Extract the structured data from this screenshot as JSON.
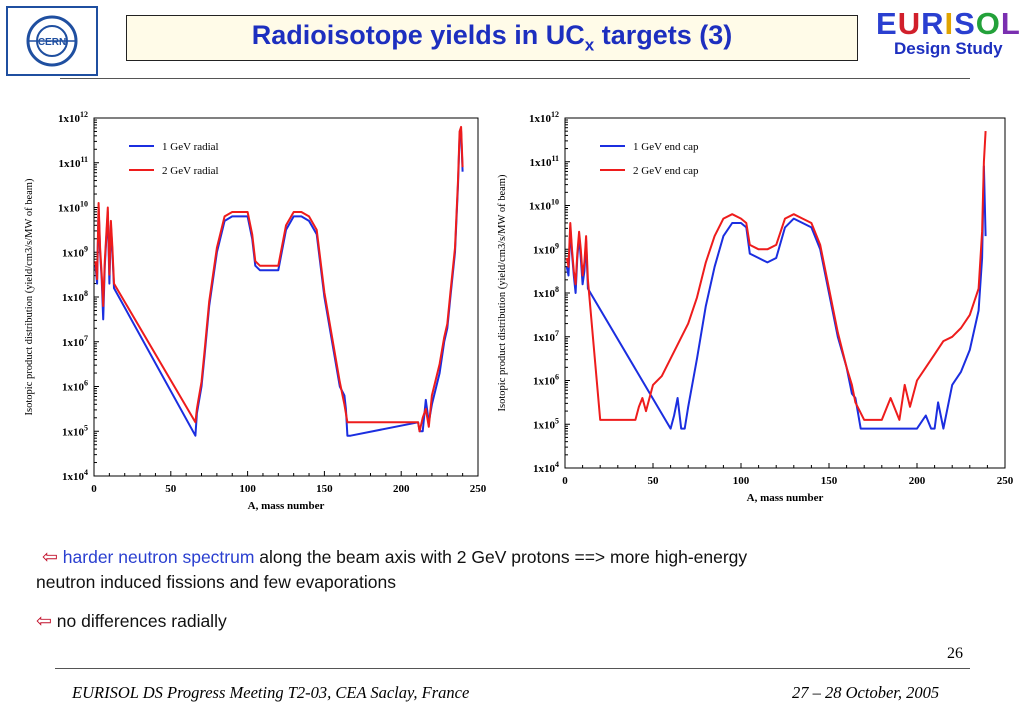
{
  "header": {
    "title_main": "Radioisotope yields in UC",
    "title_sub": "x",
    "title_tail": " targets (3)",
    "cern_logo_text": "CERN",
    "eurisol_letters": [
      {
        "ch": "E",
        "color": "#2a3fd0"
      },
      {
        "ch": "U",
        "color": "#d11f2b"
      },
      {
        "ch": "R",
        "color": "#2a3fd0"
      },
      {
        "ch": "I",
        "color": "#e0a400"
      },
      {
        "ch": "S",
        "color": "#2a3fd0"
      },
      {
        "ch": "O",
        "color": "#23a13a"
      },
      {
        "ch": "L",
        "color": "#7a2fb0"
      }
    ],
    "eurisol_subtitle": "Design Study"
  },
  "chart_data": [
    {
      "type": "line",
      "xlabel": "A, mass number",
      "ylabel": "Isotopic product distribution (yield/cm3/s/MW of beam)",
      "xlim": [
        0,
        250
      ],
      "ylim_log10": [
        4,
        12
      ],
      "x_ticks": [
        "0",
        "50",
        "100",
        "150",
        "200",
        "250"
      ],
      "y_ticks": [
        {
          "base": "1x10",
          "exp": "4"
        },
        {
          "base": "1x10",
          "exp": "5"
        },
        {
          "base": "1x10",
          "exp": "6"
        },
        {
          "base": "1x10",
          "exp": "7"
        },
        {
          "base": "1x10",
          "exp": "8"
        },
        {
          "base": "1x10",
          "exp": "9"
        },
        {
          "base": "1x10",
          "exp": "10"
        },
        {
          "base": "1x10",
          "exp": "11"
        },
        {
          "base": "1x10",
          "exp": "12"
        }
      ],
      "legend_placement": "top-left",
      "series": [
        {
          "name": "1 GeV radial",
          "color": "#1b2ee0",
          "x": [
            1,
            2,
            3,
            4,
            5,
            6,
            7,
            8,
            9,
            10,
            11,
            12,
            13,
            66,
            67,
            68,
            70,
            72,
            75,
            80,
            85,
            90,
            95,
            100,
            103,
            105,
            108,
            110,
            115,
            120,
            125,
            130,
            135,
            140,
            145,
            150,
            155,
            160,
            163,
            164,
            165,
            166,
            167,
            211,
            212,
            214,
            216,
            218,
            220,
            225,
            228,
            230,
            232,
            235,
            237,
            238,
            239,
            240
          ],
          "y": [
            8.7,
            8.3,
            10.0,
            9.0,
            8.4,
            7.5,
            8.7,
            9.3,
            9.9,
            8.3,
            9.6,
            9.0,
            8.2,
            4.9,
            5.4,
            5.6,
            6.0,
            6.7,
            7.8,
            9.0,
            9.7,
            9.8,
            9.8,
            9.8,
            9.3,
            8.7,
            8.6,
            8.6,
            8.6,
            8.6,
            9.5,
            9.8,
            9.8,
            9.7,
            9.4,
            8.0,
            7.0,
            6.0,
            5.8,
            5.5,
            4.9,
            4.9,
            4.9,
            5.2,
            5.0,
            5.0,
            5.7,
            5.2,
            5.6,
            6.3,
            7.0,
            7.3,
            8.0,
            9.0,
            10.5,
            11.6,
            11.7,
            10.8
          ]
        },
        {
          "name": "2 GeV radial",
          "color": "#ee1c1c",
          "x": [
            1,
            2,
            3,
            4,
            5,
            6,
            7,
            8,
            9,
            10,
            11,
            12,
            13,
            66,
            67,
            68,
            70,
            72,
            75,
            80,
            85,
            90,
            95,
            100,
            103,
            105,
            108,
            110,
            115,
            120,
            125,
            130,
            135,
            140,
            145,
            150,
            155,
            160,
            163,
            164,
            165,
            166,
            167,
            211,
            212,
            214,
            216,
            218,
            220,
            225,
            228,
            230,
            232,
            235,
            237,
            238,
            239,
            240
          ],
          "y": [
            8.8,
            8.4,
            10.1,
            9.1,
            8.5,
            7.8,
            8.8,
            9.4,
            10.0,
            8.5,
            9.7,
            9.1,
            8.3,
            5.2,
            5.5,
            5.7,
            6.1,
            6.8,
            7.9,
            9.1,
            9.8,
            9.9,
            9.9,
            9.9,
            9.4,
            8.8,
            8.7,
            8.7,
            8.7,
            8.7,
            9.6,
            9.9,
            9.9,
            9.8,
            9.5,
            8.1,
            7.1,
            6.1,
            5.6,
            5.4,
            5.2,
            5.2,
            5.2,
            5.2,
            5.0,
            5.3,
            5.5,
            5.1,
            5.8,
            6.5,
            7.1,
            7.4,
            8.1,
            9.1,
            10.6,
            11.7,
            11.8,
            10.9
          ]
        }
      ]
    },
    {
      "type": "line",
      "xlabel": "A, mass number",
      "ylabel": "Isotopic product distribution (yield/cm3/s/MW of beam)",
      "xlim": [
        0,
        250
      ],
      "ylim_log10": [
        4,
        12
      ],
      "x_ticks": [
        "0",
        "50",
        "100",
        "150",
        "200",
        "250"
      ],
      "y_ticks": [
        {
          "base": "1x10",
          "exp": "4"
        },
        {
          "base": "1x10",
          "exp": "5"
        },
        {
          "base": "1x10",
          "exp": "6"
        },
        {
          "base": "1x10",
          "exp": "7"
        },
        {
          "base": "1x10",
          "exp": "8"
        },
        {
          "base": "1x10",
          "exp": "9"
        },
        {
          "base": "1x10",
          "exp": "10"
        },
        {
          "base": "1x10",
          "exp": "11"
        },
        {
          "base": "1x10",
          "exp": "12"
        }
      ],
      "legend_placement": "top-left",
      "series": [
        {
          "name": "1 GeV end cap",
          "color": "#1b2ee0",
          "x": [
            1,
            2,
            3,
            4,
            5,
            6,
            7,
            8,
            9,
            10,
            11,
            12,
            13,
            60,
            62,
            64,
            66,
            68,
            70,
            75,
            80,
            85,
            90,
            95,
            100,
            103,
            105,
            110,
            115,
            120,
            125,
            130,
            135,
            140,
            145,
            150,
            155,
            160,
            163,
            165,
            168,
            200,
            205,
            208,
            210,
            212,
            215,
            220,
            225,
            230,
            235,
            237,
            238,
            239
          ],
          "y": [
            8.6,
            8.4,
            9.5,
            8.9,
            8.4,
            8.0,
            8.8,
            9.3,
            8.8,
            8.2,
            8.5,
            9.2,
            8.1,
            4.9,
            5.2,
            5.6,
            4.9,
            4.9,
            5.4,
            6.5,
            7.7,
            8.6,
            9.3,
            9.6,
            9.6,
            9.5,
            8.9,
            8.8,
            8.7,
            8.8,
            9.5,
            9.7,
            9.6,
            9.5,
            9.0,
            8.0,
            7.0,
            6.3,
            5.7,
            5.6,
            4.9,
            4.9,
            5.2,
            4.9,
            4.9,
            5.5,
            4.9,
            5.9,
            6.2,
            6.7,
            7.6,
            8.8,
            10.9,
            9.3
          ]
        },
        {
          "name": "2 GeV end cap",
          "color": "#ee1c1c",
          "x": [
            1,
            2,
            3,
            4,
            5,
            6,
            7,
            8,
            9,
            10,
            11,
            12,
            13,
            20,
            40,
            42,
            44,
            46,
            48,
            50,
            55,
            60,
            65,
            70,
            75,
            80,
            85,
            90,
            95,
            100,
            103,
            105,
            110,
            115,
            120,
            125,
            130,
            135,
            140,
            145,
            150,
            155,
            160,
            163,
            165,
            170,
            180,
            185,
            190,
            193,
            196,
            200,
            205,
            210,
            215,
            220,
            225,
            230,
            235,
            237,
            238,
            239
          ],
          "y": [
            8.8,
            8.6,
            9.6,
            9.0,
            8.5,
            8.2,
            8.9,
            9.4,
            9.0,
            8.4,
            8.7,
            9.3,
            8.3,
            5.1,
            5.1,
            5.4,
            5.6,
            5.3,
            5.6,
            5.9,
            6.1,
            6.5,
            6.9,
            7.3,
            7.9,
            8.7,
            9.3,
            9.7,
            9.8,
            9.7,
            9.6,
            9.1,
            9.0,
            9.0,
            9.1,
            9.7,
            9.8,
            9.7,
            9.6,
            9.1,
            8.1,
            7.1,
            6.3,
            5.9,
            5.5,
            5.1,
            5.1,
            5.6,
            5.1,
            5.9,
            5.4,
            6.0,
            6.3,
            6.6,
            6.9,
            7.0,
            7.2,
            7.5,
            8.1,
            9.4,
            11.0,
            11.7
          ]
        }
      ]
    }
  ],
  "body_text": {
    "bullet1_highlight": "harder neutron spectrum",
    "bullet1_rest": " along the beam axis with 2 GeV protons ==> more high-energy",
    "bullet1_line2": "neutron induced fissions and few evaporations",
    "bullet2": "no differences radially",
    "arrow_glyph": "⇦"
  },
  "footer": {
    "page_number": "26",
    "left": "EURISOL DS Progress Meeting T2-03, CEA Saclay, France",
    "right": "27 – 28 October, 2005"
  }
}
